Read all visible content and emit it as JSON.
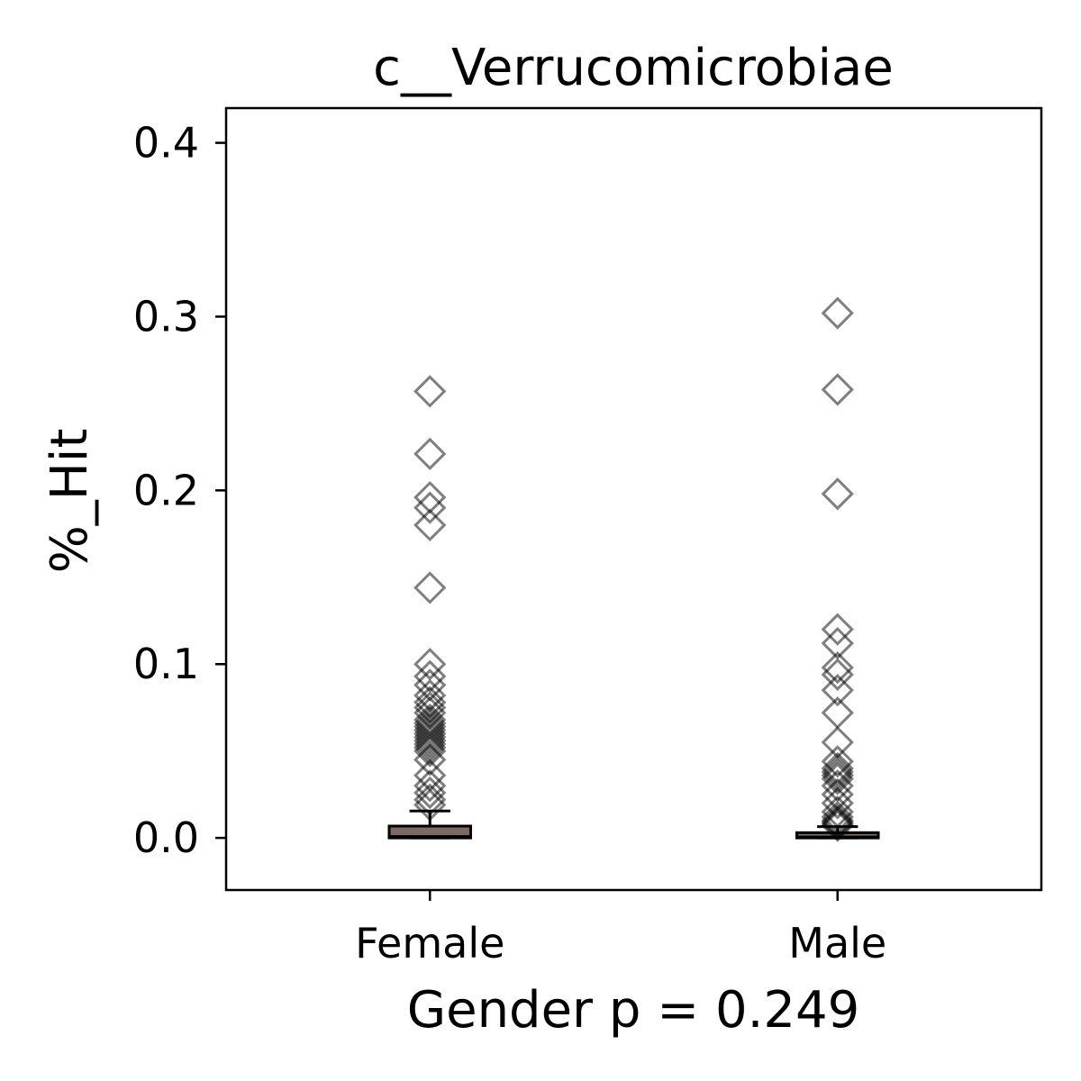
{
  "chart_data": {
    "type": "box",
    "title": "c__Verrucomicrobiae",
    "xlabel": "Gender p = 0.249",
    "ylabel": "%_Hit",
    "ylim": [
      -0.03,
      0.42
    ],
    "yticks": [
      0.0,
      0.1,
      0.2,
      0.3,
      0.4
    ],
    "ytick_labels": [
      "0.0",
      "0.1",
      "0.2",
      "0.3",
      "0.4"
    ],
    "categories": [
      "Female",
      "Male"
    ],
    "grid": false,
    "legend": "none",
    "box_color": "#7a6a64",
    "flier_color": "#000000",
    "groups": [
      {
        "name": "Female",
        "q1": 0.0,
        "median": 0.0008,
        "q3": 0.0068,
        "whisker_low": 0.0,
        "whisker_high": 0.0155,
        "outliers": [
          0.257,
          0.221,
          0.196,
          0.19,
          0.18,
          0.144,
          0.1,
          0.093,
          0.088,
          0.082,
          0.078,
          0.075,
          0.072,
          0.068,
          0.066,
          0.064,
          0.062,
          0.06,
          0.058,
          0.056,
          0.054,
          0.052,
          0.05,
          0.045,
          0.036,
          0.03,
          0.026,
          0.022,
          0.019
        ]
      },
      {
        "name": "Male",
        "q1": 0.0,
        "median": 0.0005,
        "q3": 0.003,
        "whisker_low": 0.0,
        "whisker_high": 0.0065,
        "outliers": [
          0.302,
          0.258,
          0.198,
          0.12,
          0.112,
          0.098,
          0.094,
          0.085,
          0.072,
          0.055,
          0.044,
          0.04,
          0.038,
          0.036,
          0.034,
          0.03,
          0.025,
          0.02,
          0.015,
          0.012,
          0.01,
          0.009,
          0.008,
          0.007
        ]
      }
    ]
  }
}
